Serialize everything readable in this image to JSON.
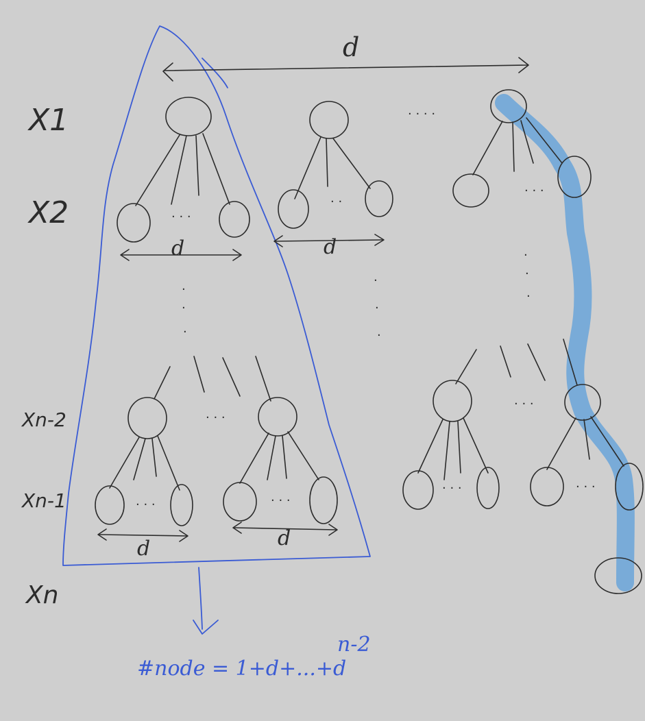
{
  "levels": {
    "x1": "X1",
    "x2": "X2",
    "xn2": "Xn-2",
    "xn1": "Xn-1",
    "xn": "Xn"
  },
  "arrows": {
    "top": "d",
    "level2_left": "d",
    "level2_mid": "d",
    "bottom_left": "d",
    "bottom_mid": "d"
  },
  "formula": {
    "text": "#node = 1+d+...+d",
    "exponent": "n-2"
  },
  "colors": {
    "background": "#cfcfcf",
    "ink": "#2c2c2c",
    "annotation": "#3a5bd4",
    "highlight": "#6fa6d8"
  }
}
